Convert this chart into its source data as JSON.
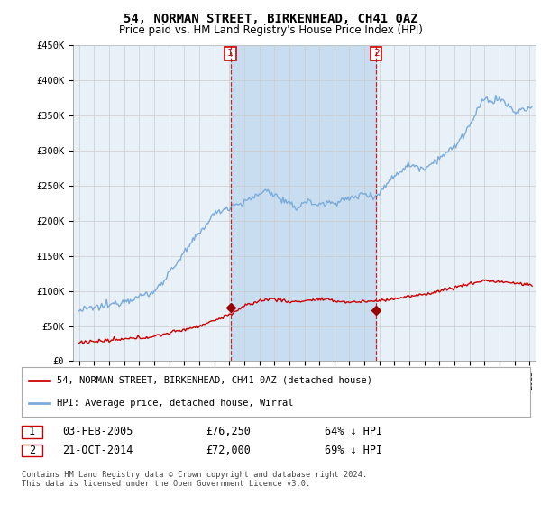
{
  "title": "54, NORMAN STREET, BIRKENHEAD, CH41 0AZ",
  "subtitle": "Price paid vs. HM Land Registry's House Price Index (HPI)",
  "hpi_label": "HPI: Average price, detached house, Wirral",
  "price_label": "54, NORMAN STREET, BIRKENHEAD, CH41 0AZ (detached house)",
  "footnote": "Contains HM Land Registry data © Crown copyright and database right 2024.\nThis data is licensed under the Open Government Licence v3.0.",
  "sale1": {
    "label": "1",
    "date": "03-FEB-2005",
    "price": "£76,250",
    "hpi": "64% ↓ HPI",
    "x": 2005.08
  },
  "sale2": {
    "label": "2",
    "date": "21-OCT-2014",
    "price": "£72,000",
    "hpi": "69% ↓ HPI",
    "x": 2014.79
  },
  "ylim": [
    0,
    450000
  ],
  "xlim_start": 1994.6,
  "xlim_end": 2025.4,
  "price_color": "#cc0000",
  "hpi_color": "#7aabdb",
  "vline_color": "#cc0000",
  "bg_color": "#ffffff",
  "plot_bg_color": "#e8f0f8",
  "grid_color": "#cccccc",
  "sale_marker_color": "#990000",
  "highlight_bg": "#c8ddf0"
}
